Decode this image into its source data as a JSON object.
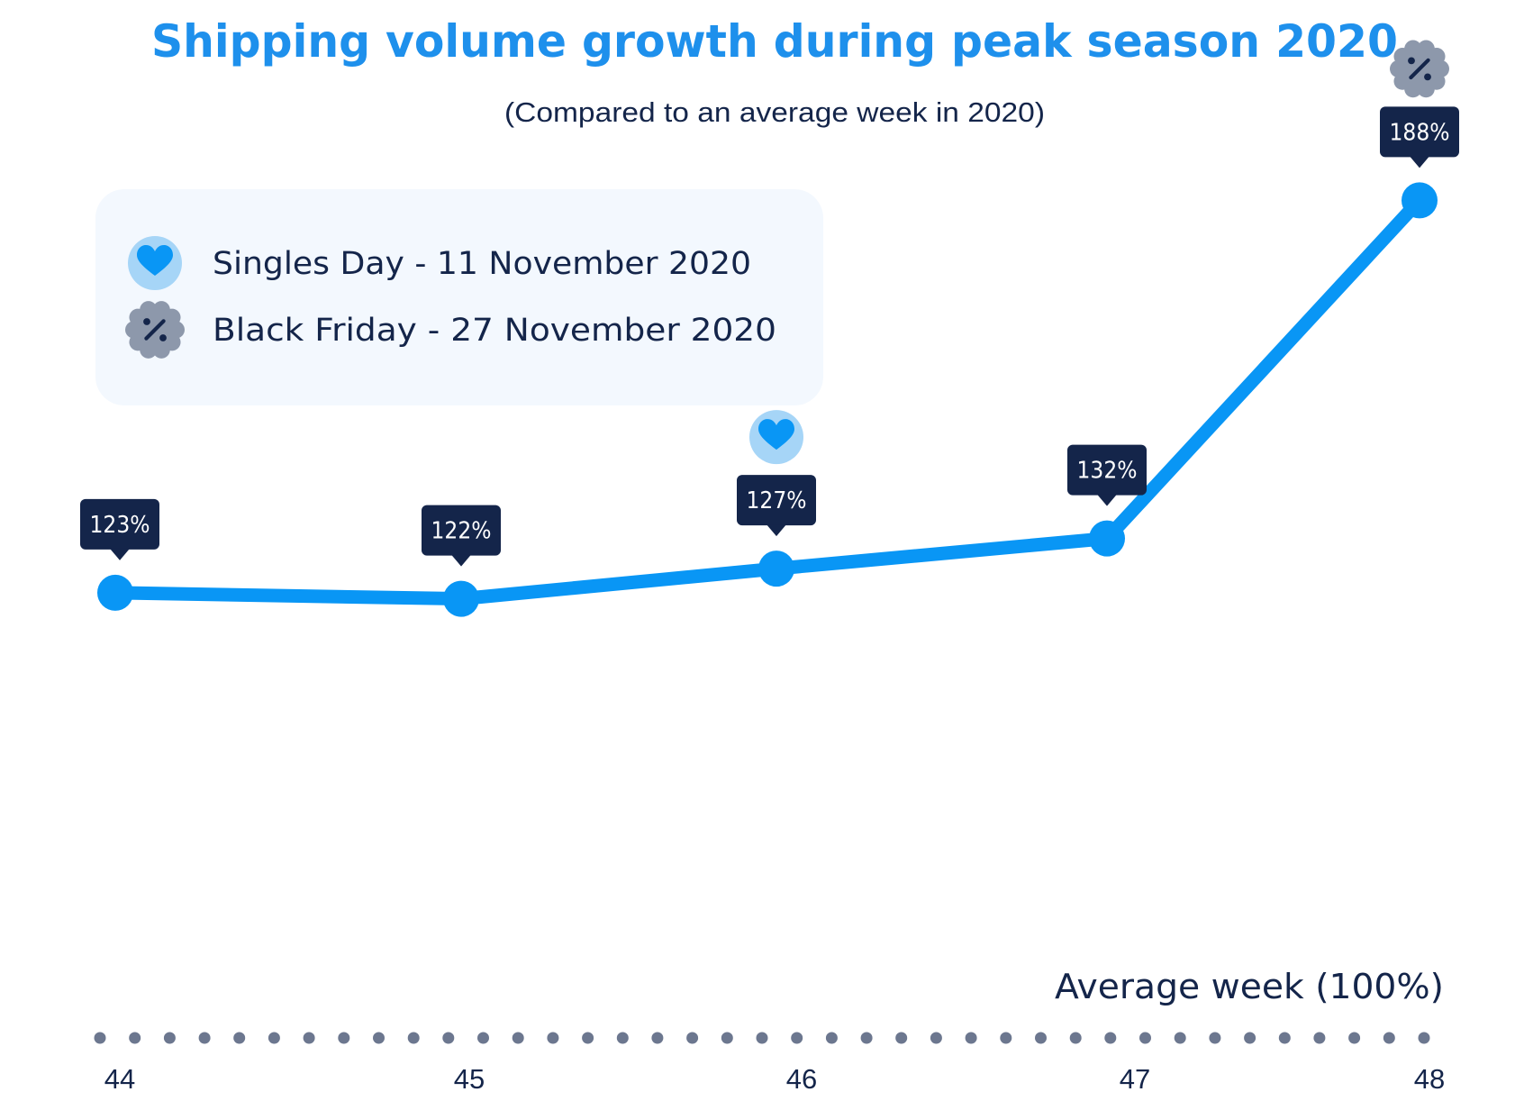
{
  "chart_data": {
    "type": "line",
    "title": "Shipping volume growth during peak season 2020",
    "subtitle": "(Compared to an average week in 2020)",
    "x": [
      "44",
      "45",
      "46",
      "47",
      "48"
    ],
    "values": [
      123,
      122,
      127,
      132,
      188
    ],
    "value_labels": [
      "123%",
      "122%",
      "127%",
      "132%",
      "188%"
    ],
    "unit": "%",
    "baseline": {
      "value": 100,
      "label": "Average week (100%)"
    },
    "ylim": [
      100,
      200
    ],
    "xlabel": "",
    "ylabel": "",
    "grid": false,
    "legend": {
      "placement": "top-left",
      "entries": [
        {
          "label": "Singles Day - 11 November 2020",
          "icon": "heart-icon",
          "week": "46"
        },
        {
          "label": "Black Friday - 27 November 2020",
          "icon": "percent-badge-icon",
          "week": "48"
        }
      ]
    },
    "colors": {
      "title": "#1e90ec",
      "text": "#14254a",
      "line": "#0996f5",
      "label_bg": "#14254a",
      "label_text": "#ffffff",
      "dots": "#6c778f",
      "legend_bg": "#f3f8fe",
      "heart_circle": "#a6d5f7",
      "heart": "#0996f5",
      "badge": "#8d98ab",
      "badge_symbol": "#14254a"
    }
  }
}
